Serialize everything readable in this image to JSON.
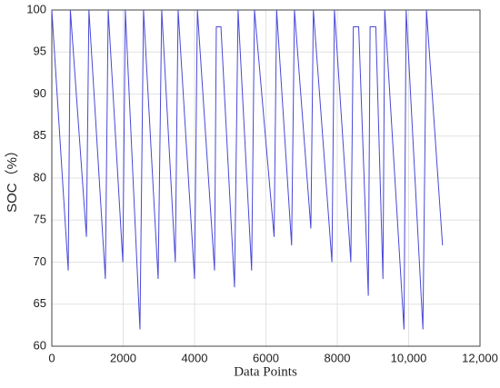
{
  "chart_data": {
    "type": "line",
    "xlabel": "Data Points",
    "ylabel": "SOC（%）",
    "x": [
      0,
      460,
      520,
      970,
      1040,
      1500,
      1580,
      1990,
      2060,
      2470,
      2570,
      2980,
      3080,
      3460,
      3540,
      4000,
      4080,
      4560,
      4610,
      4740,
      5120,
      5220,
      5600,
      5680,
      6230,
      6300,
      6720,
      6800,
      7260,
      7330,
      7850,
      7920,
      8380,
      8450,
      8600,
      8870,
      8920,
      9080,
      9280,
      9330,
      9870,
      9930,
      10400,
      10500,
      10950
    ],
    "series": [
      {
        "name": "SOC",
        "color": "#4848d8",
        "values": [
          100,
          69,
          100,
          73,
          100,
          68,
          100,
          70,
          100,
          62,
          100,
          68,
          100,
          70,
          100,
          68,
          100,
          69,
          98,
          98,
          67,
          100,
          69,
          100,
          73,
          100,
          72,
          100,
          74,
          100,
          70,
          100,
          70,
          98,
          98,
          66,
          98,
          98,
          68,
          100,
          62,
          100,
          62,
          100,
          72
        ]
      }
    ],
    "xlim": [
      0,
      12000
    ],
    "xticks": [
      0,
      2000,
      4000,
      6000,
      8000,
      {
        "value": 10000,
        "label": "10,000"
      },
      {
        "value": 12000,
        "label": "12,000"
      }
    ],
    "ylim": [
      60,
      100
    ],
    "yticks": [
      60,
      65,
      70,
      75,
      80,
      85,
      90,
      95,
      100
    ],
    "grid": true
  }
}
